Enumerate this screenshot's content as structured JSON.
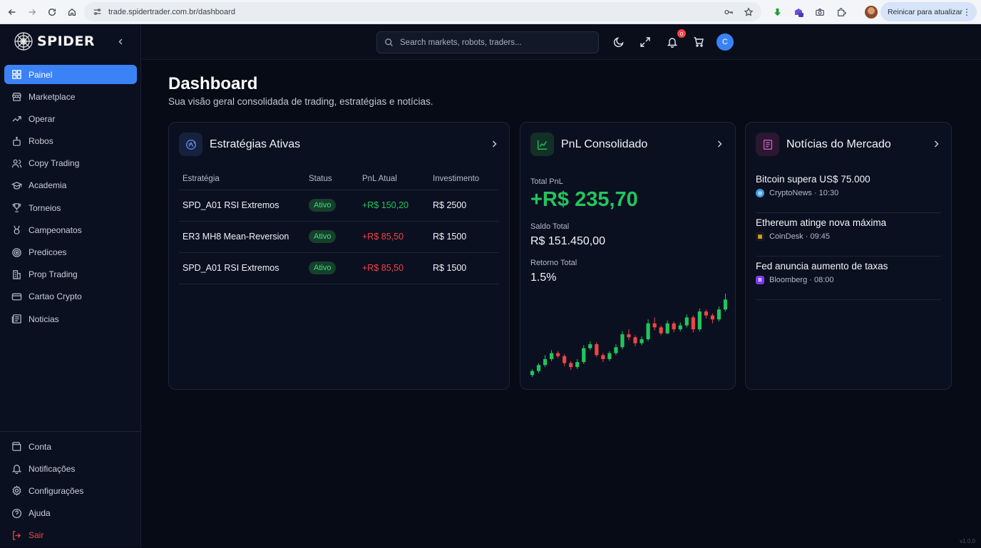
{
  "browser": {
    "url": "trade.spidertrader.com.br/dashboard",
    "update_label": "Reinicar para atualizar"
  },
  "brand": {
    "name": "SPIDER"
  },
  "sidebar": {
    "items": [
      {
        "label": "Painel",
        "icon": "grid-icon"
      },
      {
        "label": "Marketplace",
        "icon": "store-icon"
      },
      {
        "label": "Operar",
        "icon": "trending-icon"
      },
      {
        "label": "Robos",
        "icon": "robot-icon"
      },
      {
        "label": "Copy Trading",
        "icon": "users-icon"
      },
      {
        "label": "Academia",
        "icon": "graduation-icon"
      },
      {
        "label": "Torneios",
        "icon": "trophy-icon"
      },
      {
        "label": "Campeonatos",
        "icon": "medal-icon"
      },
      {
        "label": "Predicoes",
        "icon": "target-icon"
      },
      {
        "label": "Prop Trading",
        "icon": "building-icon"
      },
      {
        "label": "Cartao Crypto",
        "icon": "card-icon"
      },
      {
        "label": "Noticias",
        "icon": "news-icon"
      }
    ],
    "bottom": [
      {
        "label": "Conta",
        "icon": "wallet-icon"
      },
      {
        "label": "Notificações",
        "icon": "bell-icon"
      },
      {
        "label": "Configurações",
        "icon": "gear-icon"
      },
      {
        "label": "Ajuda",
        "icon": "help-icon"
      },
      {
        "label": "Sair",
        "icon": "logout-icon"
      }
    ]
  },
  "topbar": {
    "search_placeholder": "Search markets, robots, traders...",
    "notification_count": "0",
    "avatar_initial": "C"
  },
  "page": {
    "title": "Dashboard",
    "subtitle": "Sua visão geral consolidada de trading, estratégias e notícias."
  },
  "strategies": {
    "title": "Estratégias Ativas",
    "headers": [
      "Estratégia",
      "Status",
      "PnL Atual",
      "Investimento"
    ],
    "rows": [
      {
        "name": "SPD_A01 RSI Extremos",
        "status": "Ativo",
        "pnl": "+R$ 150,20",
        "pnl_color": "#22c55e",
        "investment": "R$ 2500"
      },
      {
        "name": "ER3 MH8 Mean-Reversion",
        "status": "Ativo",
        "pnl": "+R$ 85,50",
        "pnl_color": "#ef4444",
        "investment": "R$ 1500"
      },
      {
        "name": "SPD_A01 RSI Extremos",
        "status": "Ativo",
        "pnl": "+R$ 85,50",
        "pnl_color": "#ef4444",
        "investment": "R$ 1500"
      }
    ]
  },
  "pnl": {
    "title": "PnL Consolidado",
    "total_label": "Total PnL",
    "total_value": "+R$ 235,70",
    "balance_label": "Saldo Total",
    "balance_value": "R$ 151.450,00",
    "return_label": "Retorno Total",
    "return_value": "1.5%"
  },
  "news": {
    "title": "Notícias do Mercado",
    "items": [
      {
        "title": "Bitcoin supera US$ 75.000",
        "meta": "CryptoNews · 10:30",
        "icon_color": "#3b9ae1"
      },
      {
        "title": "Ethereum atinge nova máxima",
        "meta": "CoinDesk · 09:45",
        "icon_color": "#e6b325"
      },
      {
        "title": "Fed anuncia aumento de taxas",
        "meta": "Bloomberg · 08:00",
        "icon_color": "#7c3aed"
      }
    ]
  },
  "chart_data": {
    "type": "candlestick",
    "title": "",
    "candles": [
      {
        "o": 6,
        "c": 10,
        "h": 12,
        "l": 4
      },
      {
        "o": 10,
        "c": 16,
        "h": 18,
        "l": 8
      },
      {
        "o": 16,
        "c": 22,
        "h": 26,
        "l": 14
      },
      {
        "o": 22,
        "c": 28,
        "h": 31,
        "l": 20
      },
      {
        "o": 28,
        "c": 25,
        "h": 30,
        "l": 23
      },
      {
        "o": 25,
        "c": 18,
        "h": 27,
        "l": 15
      },
      {
        "o": 18,
        "c": 14,
        "h": 20,
        "l": 11
      },
      {
        "o": 14,
        "c": 19,
        "h": 22,
        "l": 12
      },
      {
        "o": 19,
        "c": 33,
        "h": 36,
        "l": 17
      },
      {
        "o": 33,
        "c": 37,
        "h": 40,
        "l": 31
      },
      {
        "o": 37,
        "c": 26,
        "h": 39,
        "l": 24
      },
      {
        "o": 26,
        "c": 22,
        "h": 28,
        "l": 19
      },
      {
        "o": 22,
        "c": 28,
        "h": 30,
        "l": 20
      },
      {
        "o": 28,
        "c": 34,
        "h": 37,
        "l": 26
      },
      {
        "o": 34,
        "c": 47,
        "h": 50,
        "l": 32
      },
      {
        "o": 47,
        "c": 44,
        "h": 52,
        "l": 41
      },
      {
        "o": 44,
        "c": 38,
        "h": 46,
        "l": 35
      },
      {
        "o": 38,
        "c": 42,
        "h": 45,
        "l": 36
      },
      {
        "o": 42,
        "c": 58,
        "h": 62,
        "l": 40
      },
      {
        "o": 58,
        "c": 54,
        "h": 64,
        "l": 51
      },
      {
        "o": 54,
        "c": 48,
        "h": 56,
        "l": 46
      },
      {
        "o": 48,
        "c": 58,
        "h": 61,
        "l": 47
      },
      {
        "o": 58,
        "c": 52,
        "h": 60,
        "l": 49
      },
      {
        "o": 52,
        "c": 56,
        "h": 59,
        "l": 50
      },
      {
        "o": 56,
        "c": 64,
        "h": 67,
        "l": 54
      },
      {
        "o": 64,
        "c": 52,
        "h": 66,
        "l": 49
      },
      {
        "o": 52,
        "c": 70,
        "h": 73,
        "l": 50
      },
      {
        "o": 70,
        "c": 66,
        "h": 72,
        "l": 63
      },
      {
        "o": 66,
        "c": 62,
        "h": 68,
        "l": 58
      },
      {
        "o": 62,
        "c": 72,
        "h": 75,
        "l": 60
      },
      {
        "o": 72,
        "c": 82,
        "h": 88,
        "l": 70
      }
    ],
    "up_color": "#22c55e",
    "down_color": "#ef4444"
  }
}
